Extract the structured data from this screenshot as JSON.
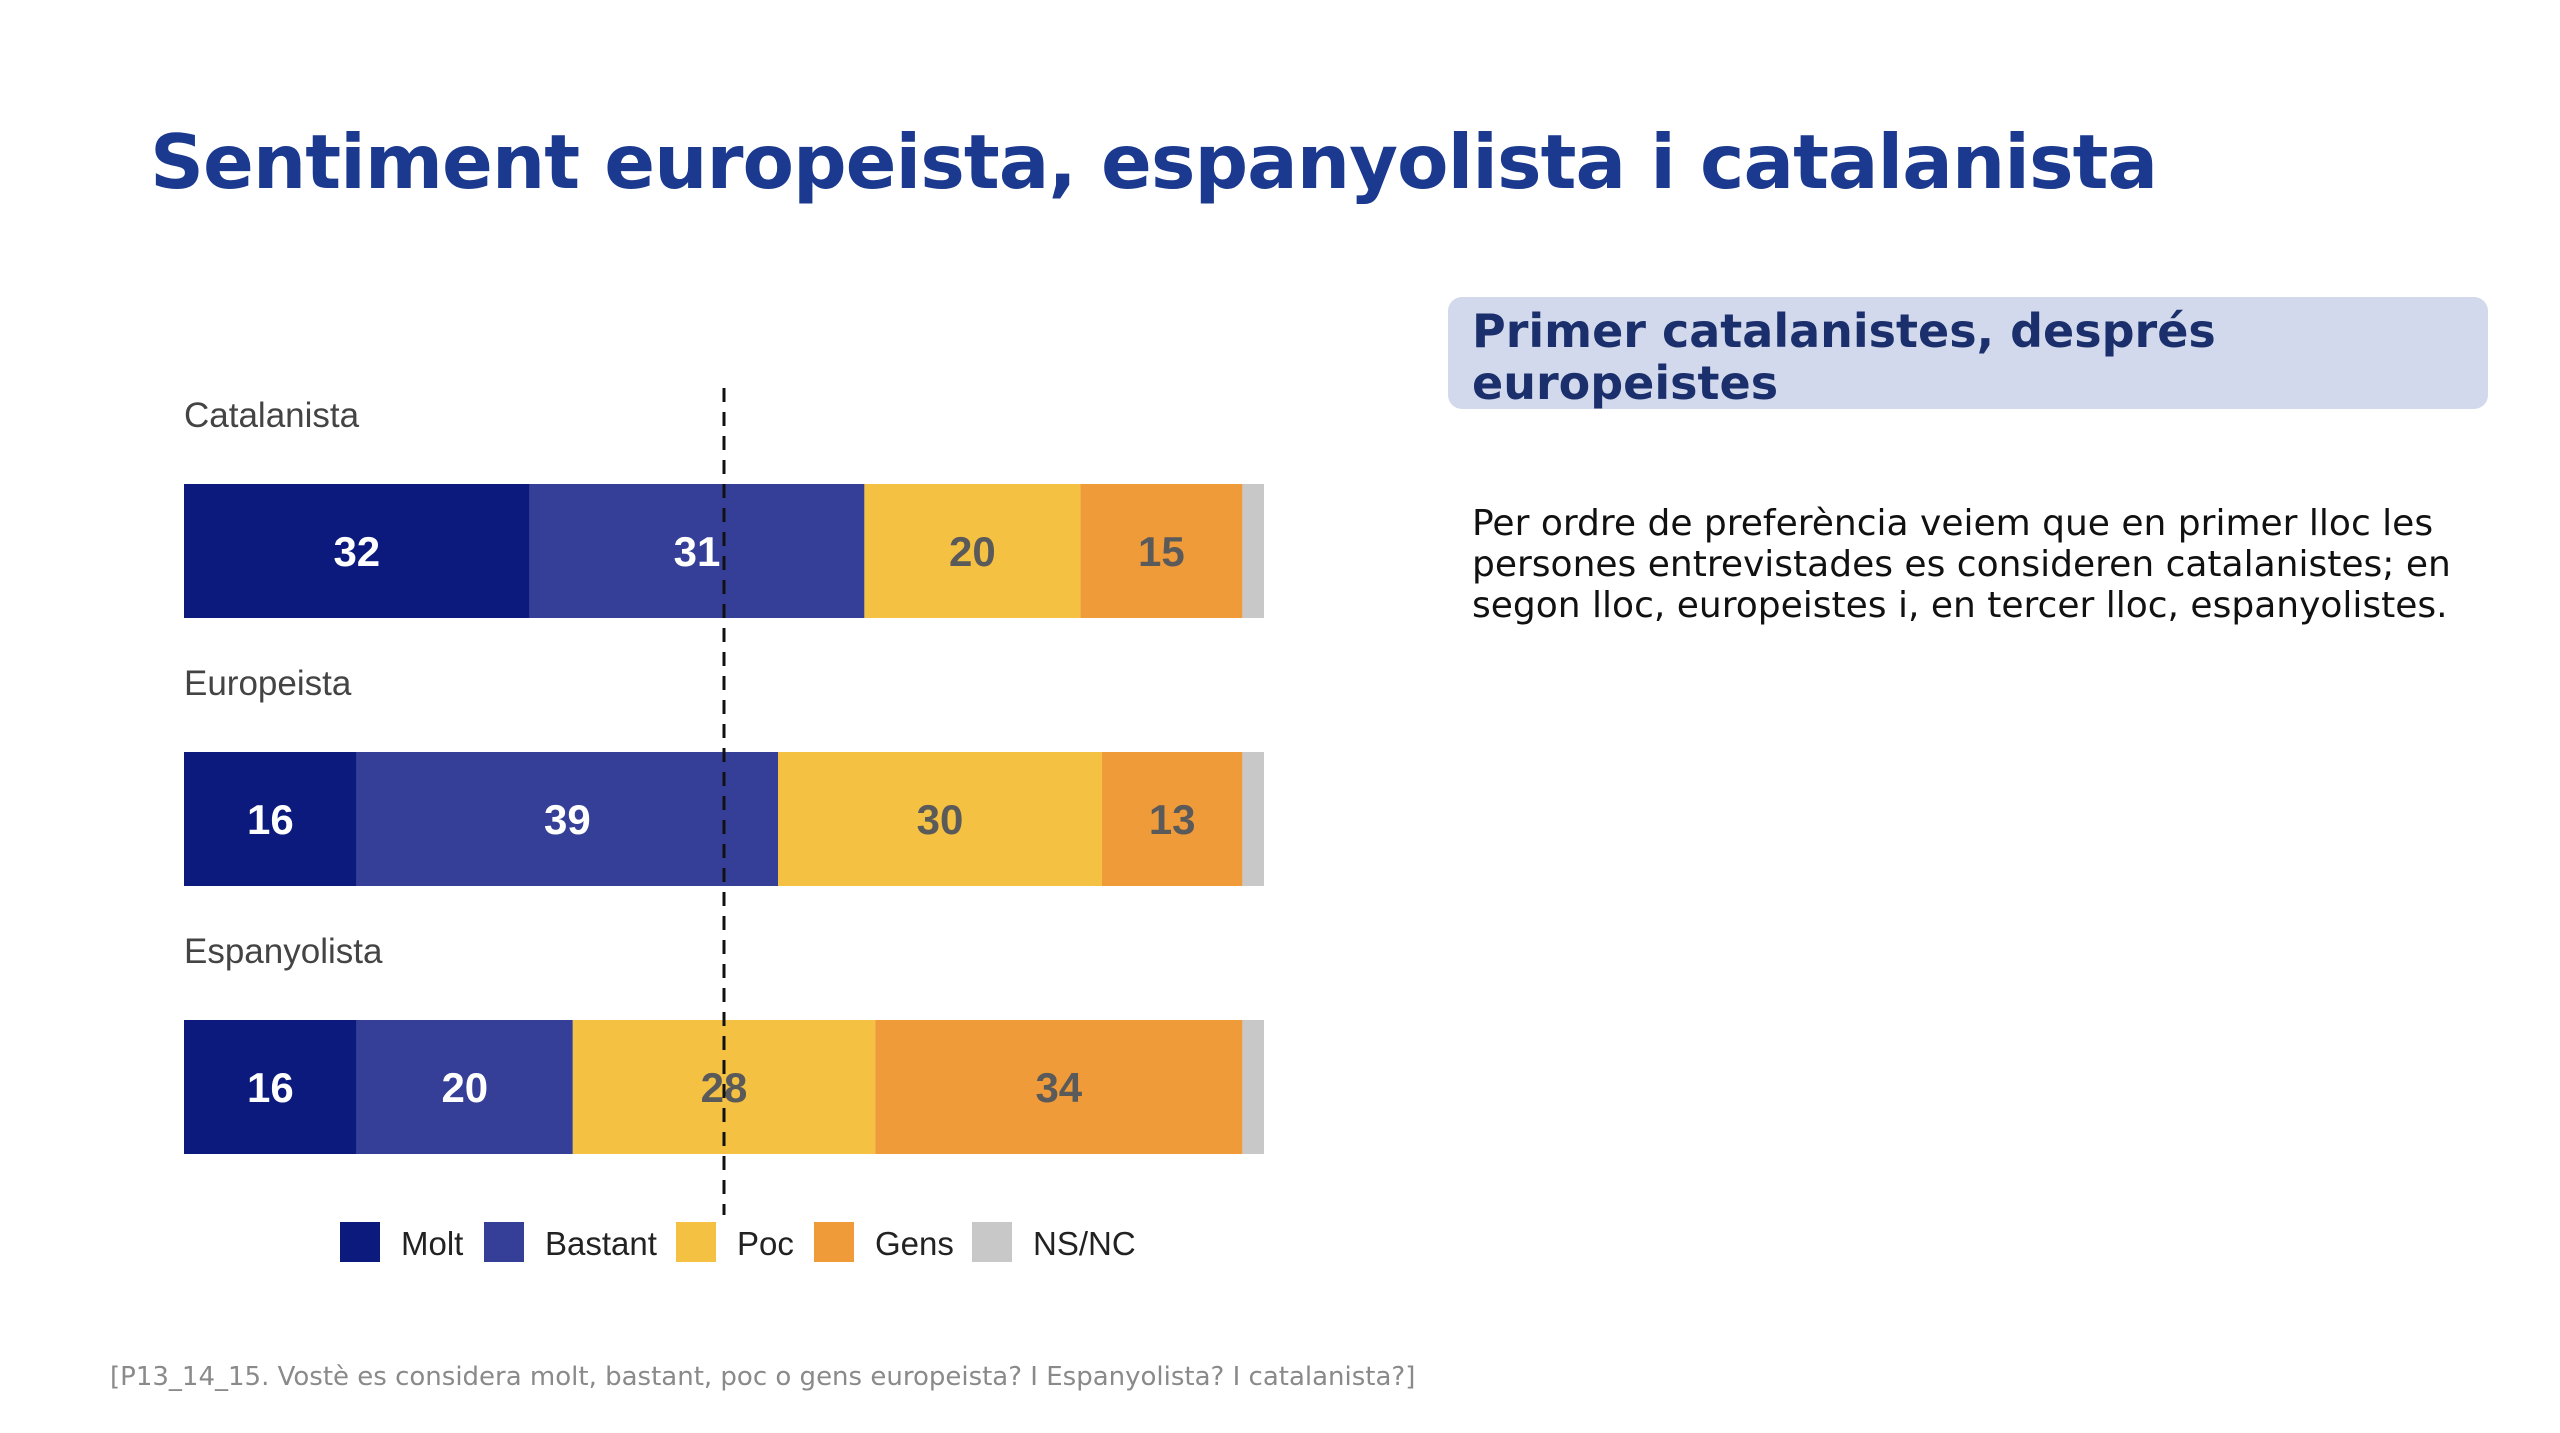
{
  "title": "Sentiment europeista, espanyolista i catalanista",
  "callout": {
    "heading": "Primer catalanistes, després europeistes"
  },
  "body": "Per ordre de preferència veiem que en primer lloc les persones entrevistades es consideren catalanistes; en segon lloc, europeistes i, en tercer lloc, espanyolistes.",
  "footnote": "[P13_14_15. Vostè es considera molt, bastant, poc o gens europeista? I Espanyolista? I catalanista?]",
  "colors": {
    "molt": "#0c1a7e",
    "bastant": "#353f98",
    "poc": "#f4c142",
    "gens": "#f09b3a",
    "nsnc": "#c8c8c8"
  },
  "chart_data": {
    "type": "bar",
    "orientation": "horizontal",
    "stacked": true,
    "categories": [
      "Catalanista",
      "Europeista",
      "Espanyolista"
    ],
    "series": [
      {
        "name": "Molt",
        "values": [
          32,
          16,
          16
        ]
      },
      {
        "name": "Bastant",
        "values": [
          31,
          39,
          20
        ]
      },
      {
        "name": "Poc",
        "values": [
          20,
          30,
          28
        ]
      },
      {
        "name": "Gens",
        "values": [
          15,
          13,
          34
        ]
      },
      {
        "name": "NS/NC",
        "values": [
          2,
          2,
          2
        ]
      }
    ],
    "shown_labels": [
      [
        "32",
        "31",
        "20",
        "15",
        ""
      ],
      [
        "16",
        "39",
        "30",
        "13",
        ""
      ],
      [
        "16",
        "20",
        "28",
        "34",
        ""
      ]
    ],
    "reference_line": 50,
    "xlim": [
      0,
      100
    ],
    "legend": "bottom",
    "grid": false
  }
}
